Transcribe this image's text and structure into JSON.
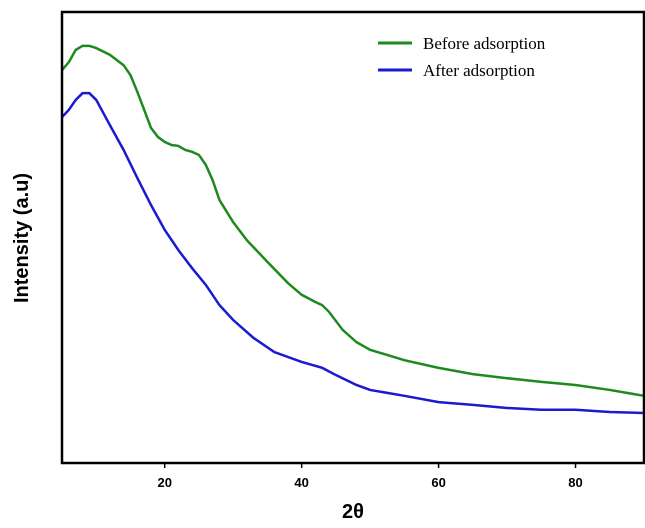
{
  "chart_data": {
    "type": "line",
    "xlabel": "2θ",
    "ylabel": "Intensity (a.u)",
    "xlim": [
      5,
      90
    ],
    "ylim": [
      0,
      100
    ],
    "xticks": [
      20,
      40,
      60,
      80
    ],
    "legend": "upper right",
    "series": [
      {
        "name": "Before adsorption",
        "color": "#1e8a1e",
        "x": [
          5,
          6,
          7,
          8,
          9,
          10,
          12,
          14,
          15,
          16,
          17,
          18,
          19,
          20,
          21,
          22,
          23,
          24,
          25,
          26,
          27,
          28,
          30,
          32,
          35,
          38,
          40,
          42,
          43,
          44,
          46,
          48,
          50,
          55,
          60,
          65,
          70,
          75,
          80,
          85,
          90
        ],
        "values": [
          87.1,
          88.9,
          91.6,
          92.5,
          92.5,
          92.0,
          90.5,
          88.2,
          86.0,
          82.3,
          78.3,
          74.3,
          72.3,
          71.2,
          70.5,
          70.3,
          69.4,
          69.0,
          68.3,
          66.1,
          62.7,
          58.3,
          53.4,
          49.4,
          44.6,
          39.9,
          37.3,
          35.7,
          35.0,
          33.5,
          29.5,
          26.8,
          25.1,
          22.8,
          21.1,
          19.7,
          18.8,
          18.0,
          17.3,
          16.2,
          14.9
        ]
      },
      {
        "name": "After adsorption",
        "color": "#1a1ad0",
        "x": [
          5,
          6,
          7,
          8,
          9,
          10,
          12,
          14,
          16,
          18,
          20,
          22,
          24,
          26,
          28,
          30,
          33,
          36,
          40,
          43,
          45,
          48,
          50,
          55,
          60,
          65,
          70,
          75,
          80,
          85,
          90
        ],
        "values": [
          76.7,
          78.3,
          80.5,
          82.0,
          82.0,
          80.5,
          74.9,
          69.4,
          63.2,
          57.2,
          51.7,
          47.2,
          43.2,
          39.5,
          35.0,
          31.7,
          27.7,
          24.6,
          22.4,
          21.1,
          19.5,
          17.3,
          16.2,
          14.9,
          13.5,
          12.9,
          12.2,
          11.8,
          11.8,
          11.3,
          11.1
        ]
      }
    ]
  }
}
